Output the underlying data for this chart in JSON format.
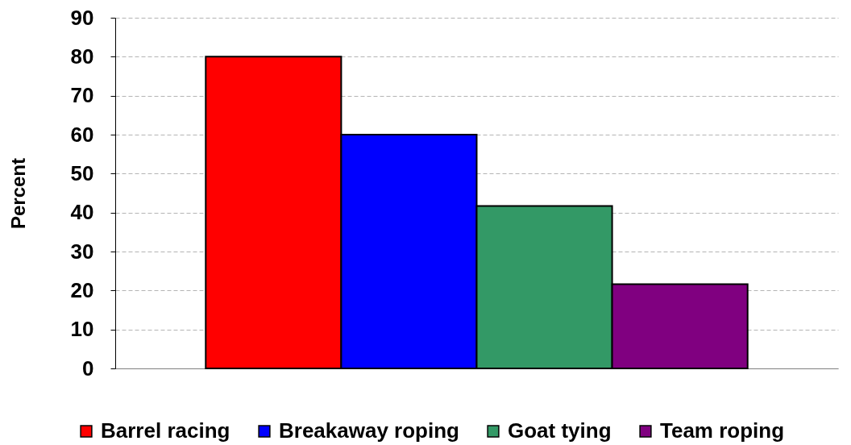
{
  "chart_data": {
    "type": "bar",
    "ylabel": "Percent",
    "categories": [
      null
    ],
    "series": [
      {
        "name": "Barrel racing",
        "color": "#ff0000",
        "values": [
          80
        ]
      },
      {
        "name": "Breakaway roping",
        "color": "#0000ff",
        "values": [
          60
        ]
      },
      {
        "name": "Goat tying",
        "color": "#339966",
        "values": [
          41.7
        ]
      },
      {
        "name": "Team roping",
        "color": "#800080",
        "values": [
          21.6
        ]
      }
    ],
    "ylim": [
      0,
      90
    ],
    "yticks": [
      0,
      10,
      20,
      30,
      40,
      50,
      60,
      70,
      80,
      90
    ],
    "grid": "y",
    "legend": "bottom"
  }
}
